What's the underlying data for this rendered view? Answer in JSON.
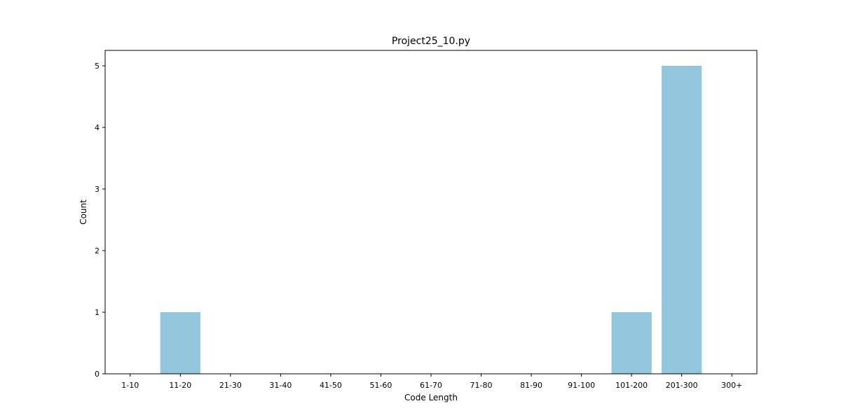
{
  "chart_data": {
    "type": "bar",
    "title": "Project25_10.py",
    "xlabel": "Code Length",
    "ylabel": "Count",
    "categories": [
      "1-10",
      "11-20",
      "21-30",
      "31-40",
      "41-50",
      "51-60",
      "61-70",
      "71-80",
      "81-90",
      "91-100",
      "101-200",
      "201-300",
      "300+"
    ],
    "values": [
      0,
      1,
      0,
      0,
      0,
      0,
      0,
      0,
      0,
      0,
      1,
      5,
      0
    ],
    "ylim": [
      0,
      5.25
    ],
    "yticks": [
      0,
      1,
      2,
      3,
      4,
      5
    ],
    "grid": false,
    "bar_color": "#92c6dc"
  }
}
